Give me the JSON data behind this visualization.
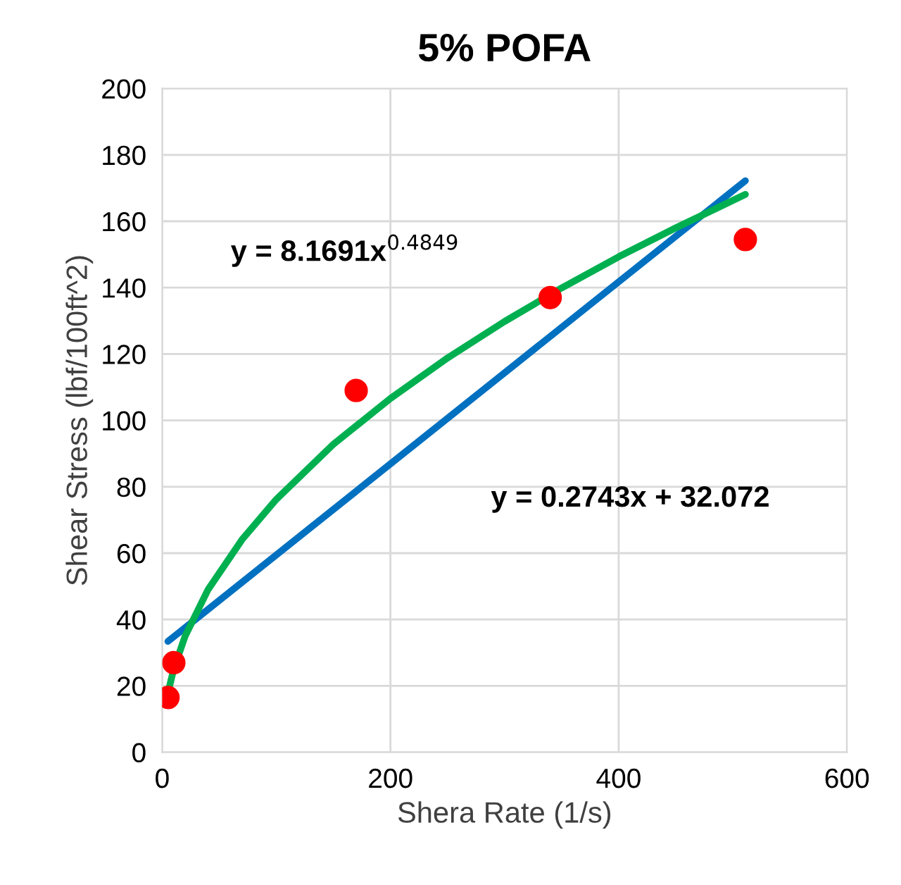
{
  "chart_data": {
    "type": "scatter",
    "title": "5% POFA",
    "xlabel": "Shera Rate (1/s)",
    "ylabel": "Shear Stress (lbf/100ft^2)",
    "xlim": [
      0,
      600
    ],
    "xticks": [
      0,
      200,
      400,
      600
    ],
    "ylim": [
      0,
      200
    ],
    "yticks": [
      0,
      20,
      40,
      60,
      80,
      100,
      120,
      140,
      160,
      180,
      200
    ],
    "grid": true,
    "series": [
      {
        "type": "line",
        "marker": "none",
        "color": "#0070c0",
        "x": [
          5,
          511
        ],
        "values": [
          33.4,
          172.2
        ]
      },
      {
        "type": "line",
        "marker": "none",
        "color": "#00b050",
        "x": [
          5,
          10,
          20,
          40,
          70,
          100,
          150,
          200,
          250,
          300,
          350,
          400,
          450,
          511
        ],
        "values": [
          17.8,
          24.9,
          34.9,
          48.9,
          64.1,
          76.2,
          92.8,
          106.6,
          118.8,
          129.8,
          139.9,
          149.3,
          158.0,
          168.1
        ]
      },
      {
        "marker": "circle",
        "color": "#ff0000",
        "x": [
          5.1,
          10.2,
          170,
          340,
          511
        ],
        "values": [
          16.5,
          27,
          109,
          137,
          154.5
        ]
      }
    ],
    "annotations": [
      "y = 8.1691x$^{0.4849}$",
      "y = 0.2743x + 32.072"
    ]
  }
}
